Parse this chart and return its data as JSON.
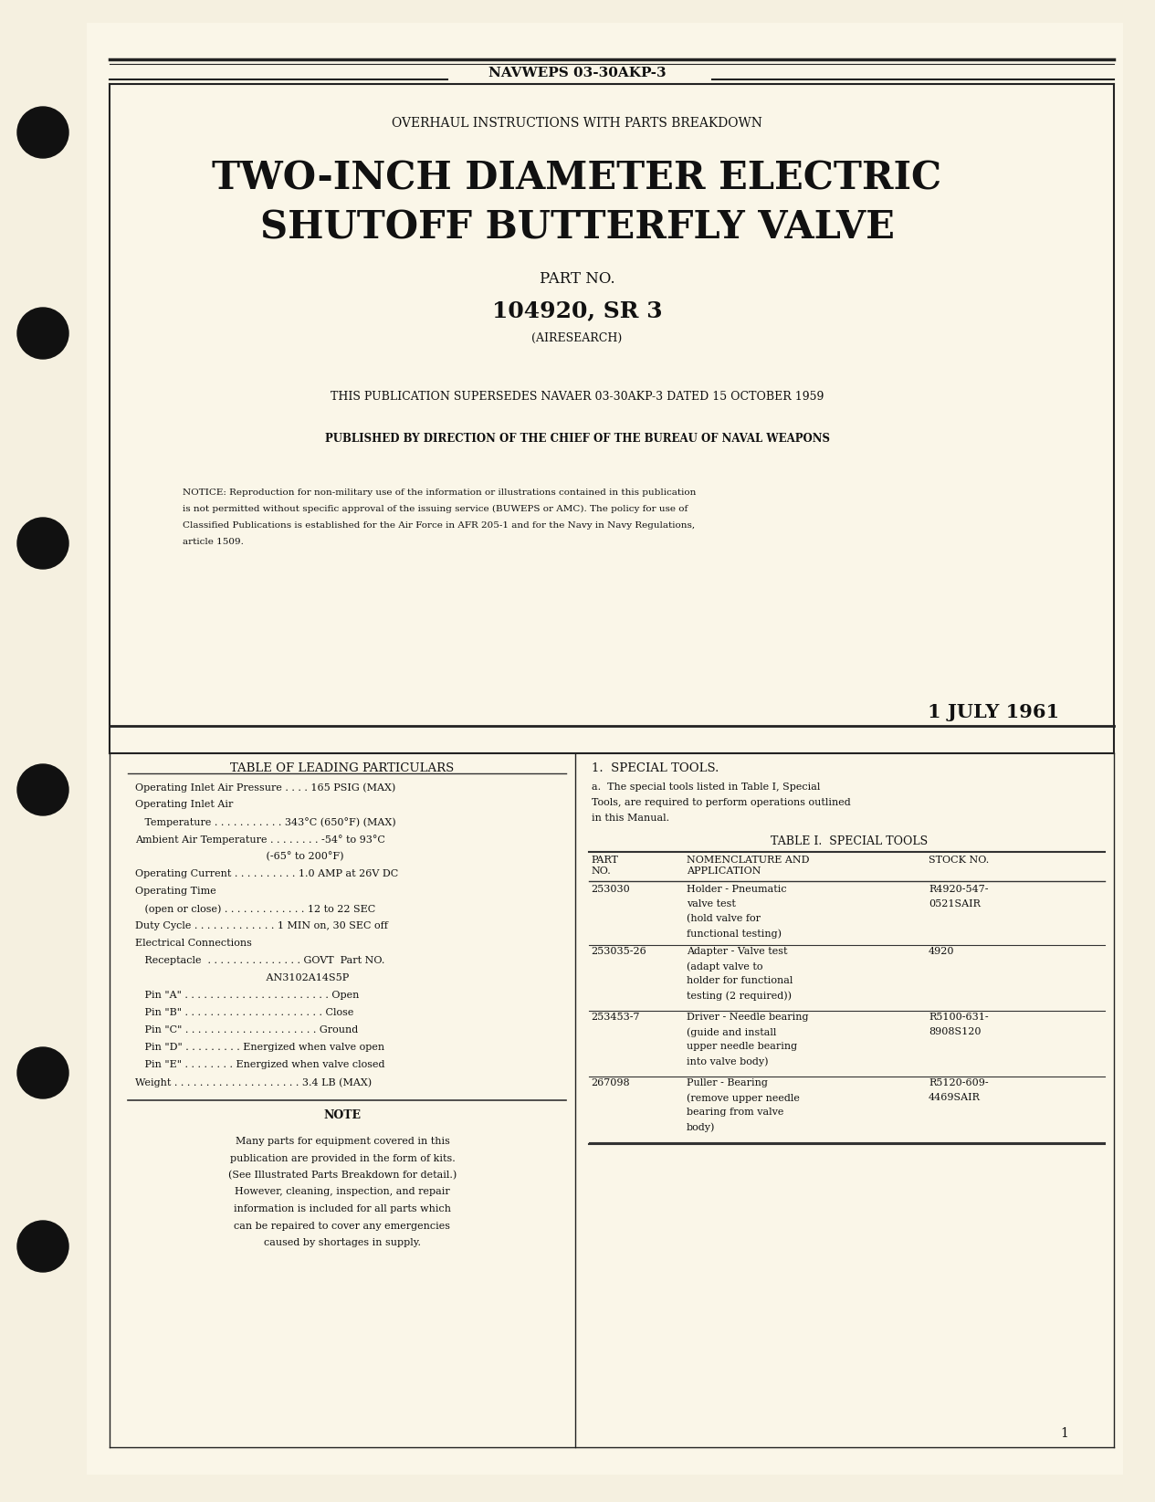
{
  "bg_color": "#f5f0e0",
  "page_bg": "#faf6e8",
  "text_color": "#1a1a1a",
  "header_text": "NAVWEPS 03-30AKP-3",
  "subtitle": "OVERHAUL INSTRUCTIONS WITH PARTS BREAKDOWN",
  "title_line1": "TWO-INCH DIAMETER ELECTRIC",
  "title_line2": "SHUTOFF BUTTERFLY VALVE",
  "part_label": "PART NO.",
  "part_number": "104920, SR 3",
  "manufacturer": "(AIRESEARCH)",
  "supersedes": "THIS PUBLICATION SUPERSEDES NAVAER 03-30AKP-3 DATED 15 OCTOBER 1959",
  "published_by": "PUBLISHED BY DIRECTION OF THE CHIEF OF THE BUREAU OF NAVAL WEAPONS",
  "notice_text": "NOTICE: Reproduction for non-military use of the information or illustrations contained in this publication\nis not permitted without specific approval of the issuing service (BUWEPS or AMC). The policy for use of\nClassified Publications is established for the Air Force in AFR 205-1 and for the Navy in Navy Regulations,\narticle 1509.",
  "date": "1 JULY 1961",
  "table_leading_title": "TABLE OF LEADING PARTICULARS",
  "leading_particulars": [
    "Operating Inlet Air Pressure . . . . 165 PSIG (MAX)",
    "Operating Inlet Air",
    "   Temperature . . . . . . . . . . . 343°C (650°F) (MAX)",
    "Ambient Air Temperature . . . . . . . . -54° to 93°C",
    "                                         (-65° to 200°F)",
    "Operating Current . . . . . . . . . . 1.0 AMP at 26V DC",
    "Operating Time",
    "   (open or close) . . . . . . . . . . . . . 12 to 22 SEC",
    "Duty Cycle . . . . . . . . . . . . . 1 MIN on, 30 SEC off",
    "Electrical Connections",
    "   Receptacle  . . . . . . . . . . . . . . . GOVT  Part NO.",
    "                                         AN3102A14S5P",
    "   Pin \"A\" . . . . . . . . . . . . . . . . . . . . . . . Open",
    "   Pin \"B\" . . . . . . . . . . . . . . . . . . . . . . Close",
    "   Pin \"C\" . . . . . . . . . . . . . . . . . . . . . Ground",
    "   Pin \"D\" . . . . . . . . . Energized when valve open",
    "   Pin \"E\" . . . . . . . . Energized when valve closed",
    "Weight . . . . . . . . . . . . . . . . . . . . 3.4 LB (MAX)"
  ],
  "note_title": "NOTE",
  "note_text": "Many parts for equipment covered in this\npublication are provided in the form of kits.\n(See Illustrated Parts Breakdown for detail.)\nHowever, cleaning, inspection, and repair\ninformation is included for all parts which\ncan be repaired to cover any emergencies\ncaused by shortages in supply.",
  "special_tools_header": "1.  SPECIAL TOOLS.",
  "special_tools_intro": "a.  The special tools listed in Table I, Special\nTools, are required to perform operations outlined\nin this Manual.",
  "table_i_title": "TABLE I.  SPECIAL TOOLS",
  "table_cols": [
    "PART\nNO.",
    "NOMENCLATURE AND\nAPPLICATION",
    "STOCK NO."
  ],
  "table_rows": [
    {
      "part": "253030",
      "desc": "Holder - Pneumatic\nvalve test\n(hold valve for\nfunctional testing)",
      "stock": "R4920-547-\n0521SAIR"
    },
    {
      "part": "253035-26",
      "desc": "Adapter - Valve test\n(adapt valve to\nholder for functional\ntesting (2 required))",
      "stock": "4920"
    },
    {
      "part": "253453-7",
      "desc": "Driver - Needle bearing\n(guide and install\nupper needle bearing\ninto valve body)",
      "stock": "R5100-631-\n8908S120"
    },
    {
      "part": "267098",
      "desc": "Puller - Bearing\n(remove upper needle\nbearing from valve\nbody)",
      "stock": "R5120-609-\n4469SAIR"
    }
  ],
  "page_number": "1"
}
